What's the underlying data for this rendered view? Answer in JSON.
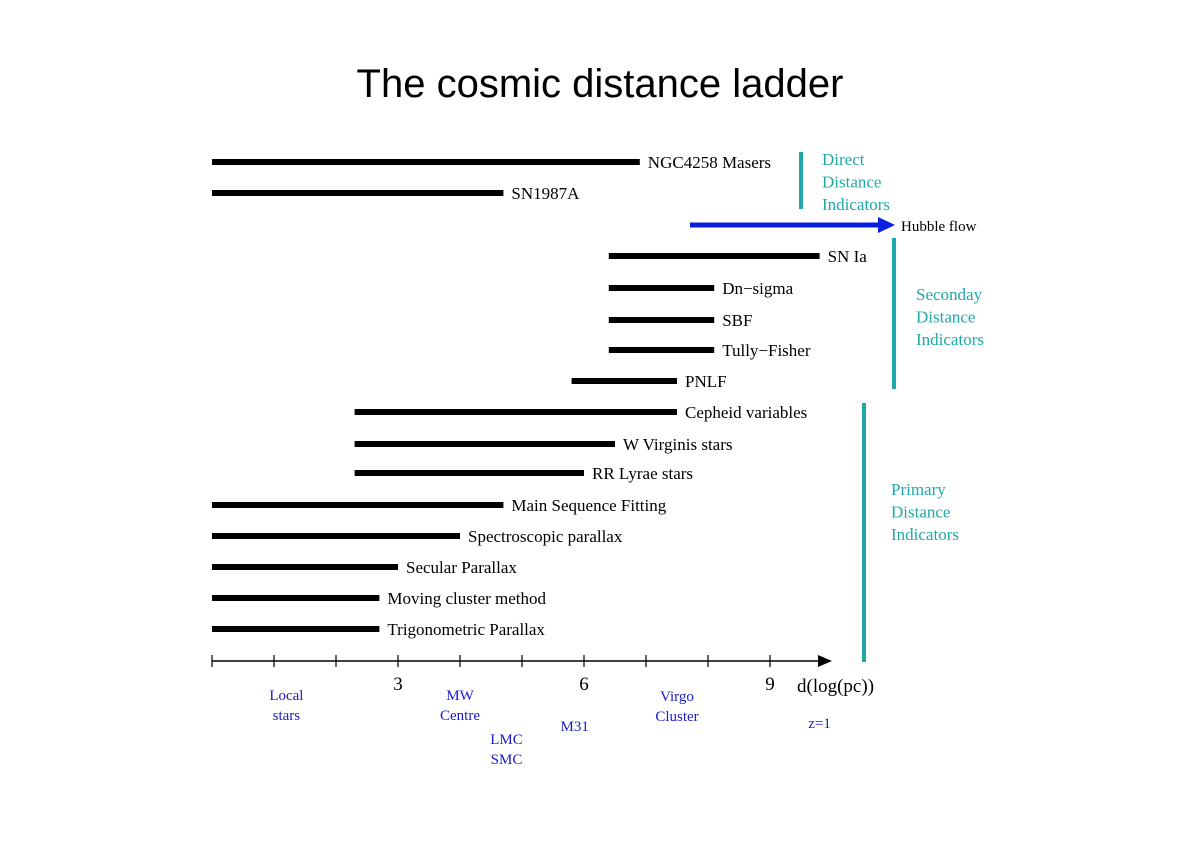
{
  "title": "The cosmic distance ladder",
  "colors": {
    "bar": "#000000",
    "group": "#20a8a8",
    "hubble": "#0a1ee0",
    "object": "#1a1acc"
  },
  "axis": {
    "xlabel": "d(log(pc))",
    "xlim": [
      0,
      10
    ],
    "ticks": [
      0,
      1,
      2,
      3,
      4,
      5,
      6,
      7,
      8,
      9
    ],
    "tick_labels": [
      {
        "x": 3,
        "label": "3"
      },
      {
        "x": 6,
        "label": "6"
      },
      {
        "x": 9,
        "label": "9"
      }
    ]
  },
  "chart_data": {
    "type": "bar",
    "orientation": "horizontal-range",
    "title": "The cosmic distance ladder",
    "xlabel": "d(log(pc))",
    "methods": [
      {
        "name": "NGC4258 Masers",
        "start": 0,
        "end": 6.9
      },
      {
        "name": "SN1987A",
        "start": 0,
        "end": 4.7
      },
      {
        "name": "SN Ia",
        "start": 6.4,
        "end": 9.8
      },
      {
        "name": "Dn−sigma",
        "start": 6.4,
        "end": 8.1
      },
      {
        "name": "SBF",
        "start": 6.4,
        "end": 8.1
      },
      {
        "name": "Tully−Fisher",
        "start": 6.4,
        "end": 8.1
      },
      {
        "name": "PNLF",
        "start": 5.8,
        "end": 7.5
      },
      {
        "name": "Cepheid variables",
        "start": 2.3,
        "end": 7.5
      },
      {
        "name": "W Virginis stars",
        "start": 2.3,
        "end": 6.5
      },
      {
        "name": "RR Lyrae stars",
        "start": 2.3,
        "end": 6.0
      },
      {
        "name": "Main Sequence Fitting",
        "start": 0,
        "end": 4.7
      },
      {
        "name": "Spectroscopic parallax",
        "start": 0,
        "end": 4.0
      },
      {
        "name": "Secular Parallax",
        "start": 0,
        "end": 3.0
      },
      {
        "name": "Moving cluster method",
        "start": 0,
        "end": 2.7
      },
      {
        "name": "Trigonometric Parallax",
        "start": 0,
        "end": 2.7
      }
    ],
    "hubble_flow": {
      "label": "Hubble flow",
      "start": 7.7,
      "end": 11.0
    }
  },
  "groups": [
    {
      "lines": [
        "Direct",
        "Distance",
        "Indicators"
      ]
    },
    {
      "lines": [
        "Seconday",
        "Distance",
        "Indicators"
      ]
    },
    {
      "lines": [
        "Primary",
        "Distance",
        "Indicators"
      ]
    }
  ],
  "objects": [
    {
      "lines": [
        "Local",
        "stars"
      ],
      "x": 1.2
    },
    {
      "lines": [
        "MW",
        "Centre"
      ],
      "x": 4.0
    },
    {
      "lines": [
        "LMC",
        "SMC"
      ],
      "x": 4.75
    },
    {
      "lines": [
        "M31"
      ],
      "x": 5.85
    },
    {
      "lines": [
        "Virgo",
        "Cluster"
      ],
      "x": 7.5
    },
    {
      "lines": [
        "z=1"
      ],
      "x": 9.8
    }
  ]
}
